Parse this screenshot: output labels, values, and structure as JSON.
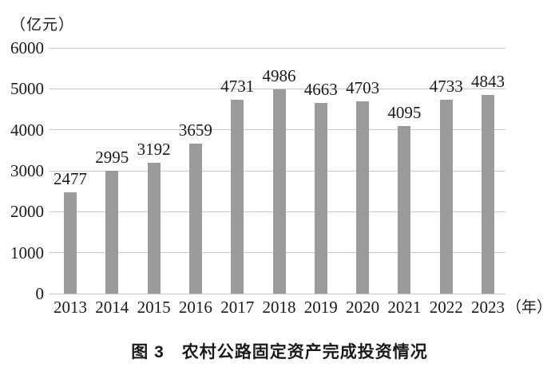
{
  "chart_data": {
    "type": "bar",
    "caption": "图 3　农村公路固定资产完成投资情况",
    "y_unit_label": "（亿元）",
    "x_unit_label": "（年）",
    "categories": [
      "2013",
      "2014",
      "2015",
      "2016",
      "2017",
      "2018",
      "2019",
      "2020",
      "2021",
      "2022",
      "2023"
    ],
    "values": [
      2477,
      2995,
      3192,
      3659,
      4731,
      4986,
      4663,
      4703,
      4095,
      4733,
      4843
    ],
    "yticks": [
      0,
      1000,
      2000,
      3000,
      4000,
      5000,
      6000
    ],
    "ylim": [
      0,
      6000
    ],
    "grid": "horizontal-only",
    "legend": "none",
    "value_labels": "above-bars",
    "colors": {
      "bar": "#9b9b9b",
      "gridline": "#c9c9c9",
      "text": "#1a1a1a",
      "background": "#ffffff"
    }
  }
}
